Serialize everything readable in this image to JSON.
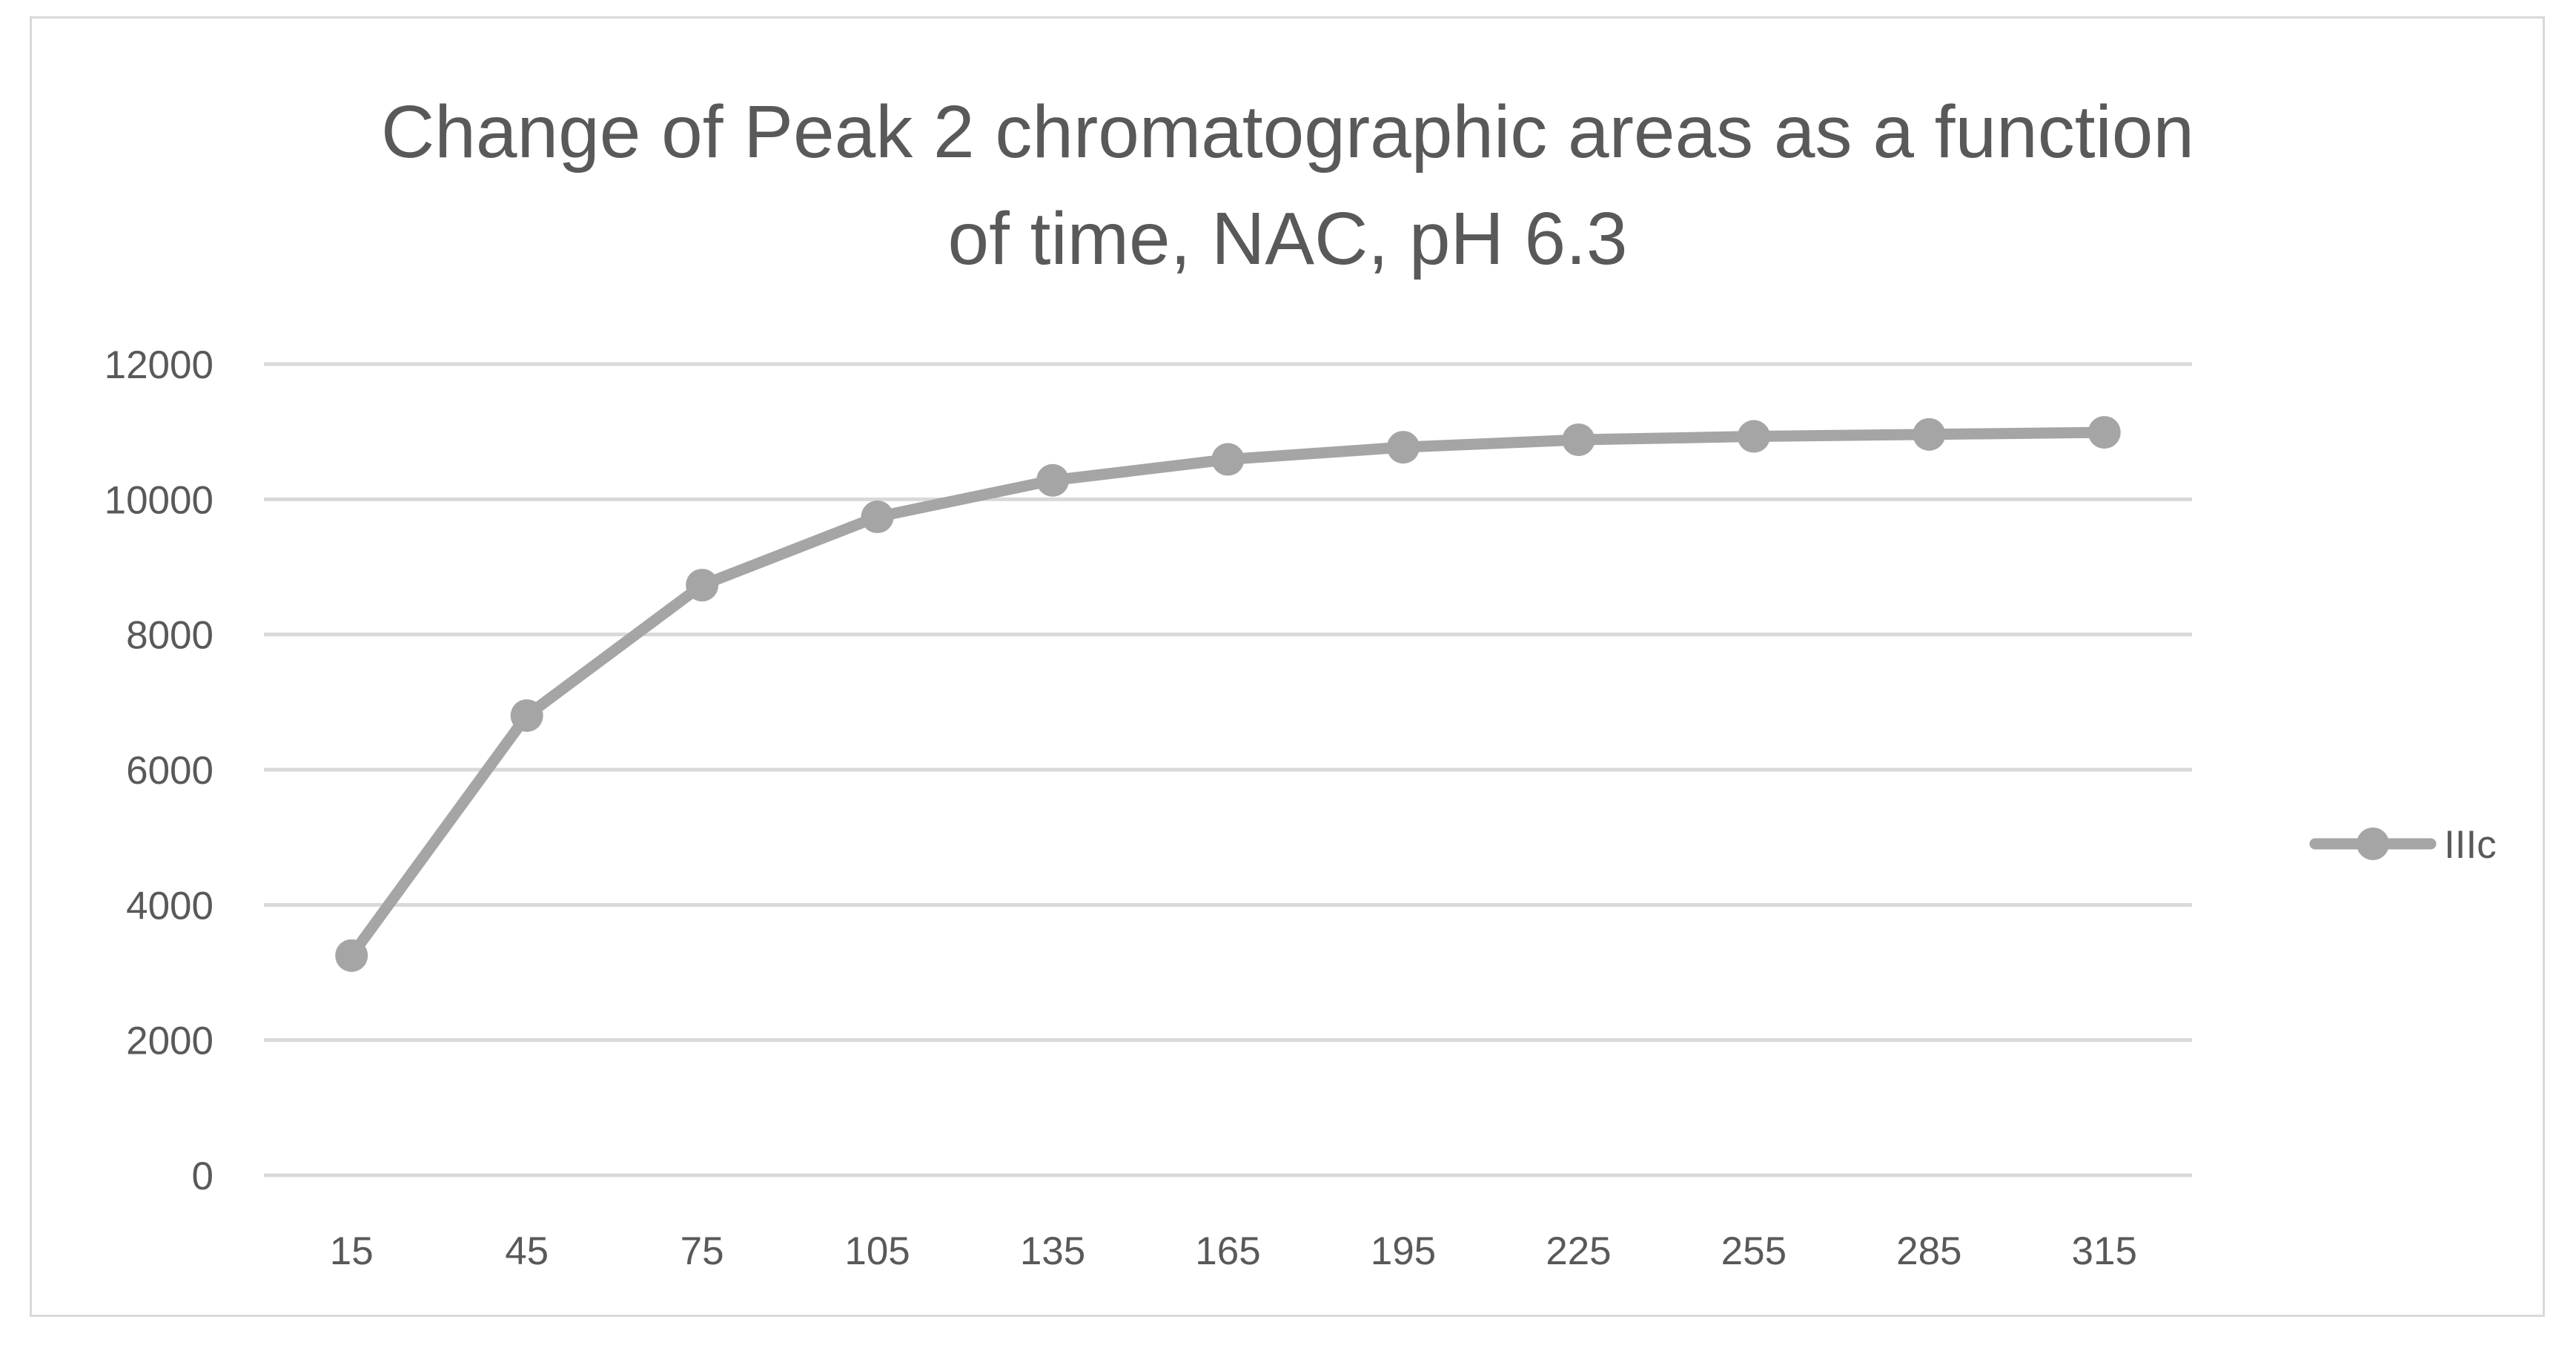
{
  "chart_data": {
    "type": "line",
    "title": "Change of Peak 2 chromatographic areas as a function of time, NAC, pH 6.3",
    "title_lines": [
      "Change of Peak 2 chromatographic areas as a function",
      "of time, NAC, pH 6.3"
    ],
    "xlabel": "",
    "ylabel": "",
    "categories": [
      "15",
      "45",
      "75",
      "105",
      "135",
      "165",
      "195",
      "225",
      "255",
      "285",
      "315"
    ],
    "series": [
      {
        "name": "IIIc",
        "color": "#a5a5a5",
        "marker": "circle",
        "values": [
          3250,
          6800,
          8730,
          9740,
          10280,
          10590,
          10770,
          10880,
          10930,
          10960,
          10990
        ]
      }
    ],
    "ylim": [
      0,
      12000
    ],
    "yticks": [
      0,
      2000,
      4000,
      6000,
      8000,
      10000,
      12000
    ],
    "grid": true,
    "gridline_color": "#d9d9d9",
    "legend_position": "right"
  }
}
